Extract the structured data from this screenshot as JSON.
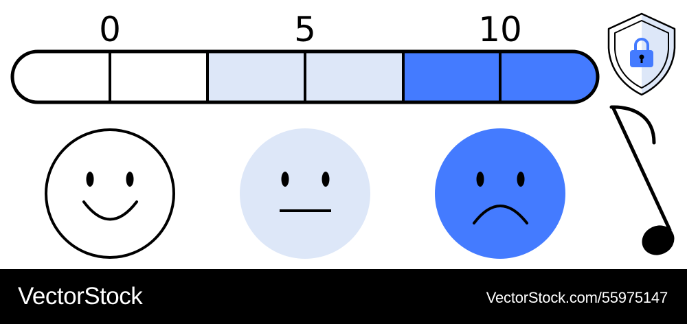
{
  "scale": {
    "ticks": [
      "0",
      "5",
      "10"
    ],
    "segments": 6,
    "low_color": "#ffffff",
    "mid_color": "#dde7f8",
    "high_color": "#447bff"
  },
  "faces": [
    {
      "mood": "happy",
      "fill": "#ffffff"
    },
    {
      "mood": "neutral",
      "fill": "#dde7f8"
    },
    {
      "mood": "sad",
      "fill": "#447bff"
    }
  ],
  "icons": [
    "shield-lock-icon",
    "music-note-icon"
  ],
  "footer": {
    "brand": "VectorStock",
    "image_id": "VectorStock.com/55975147"
  }
}
